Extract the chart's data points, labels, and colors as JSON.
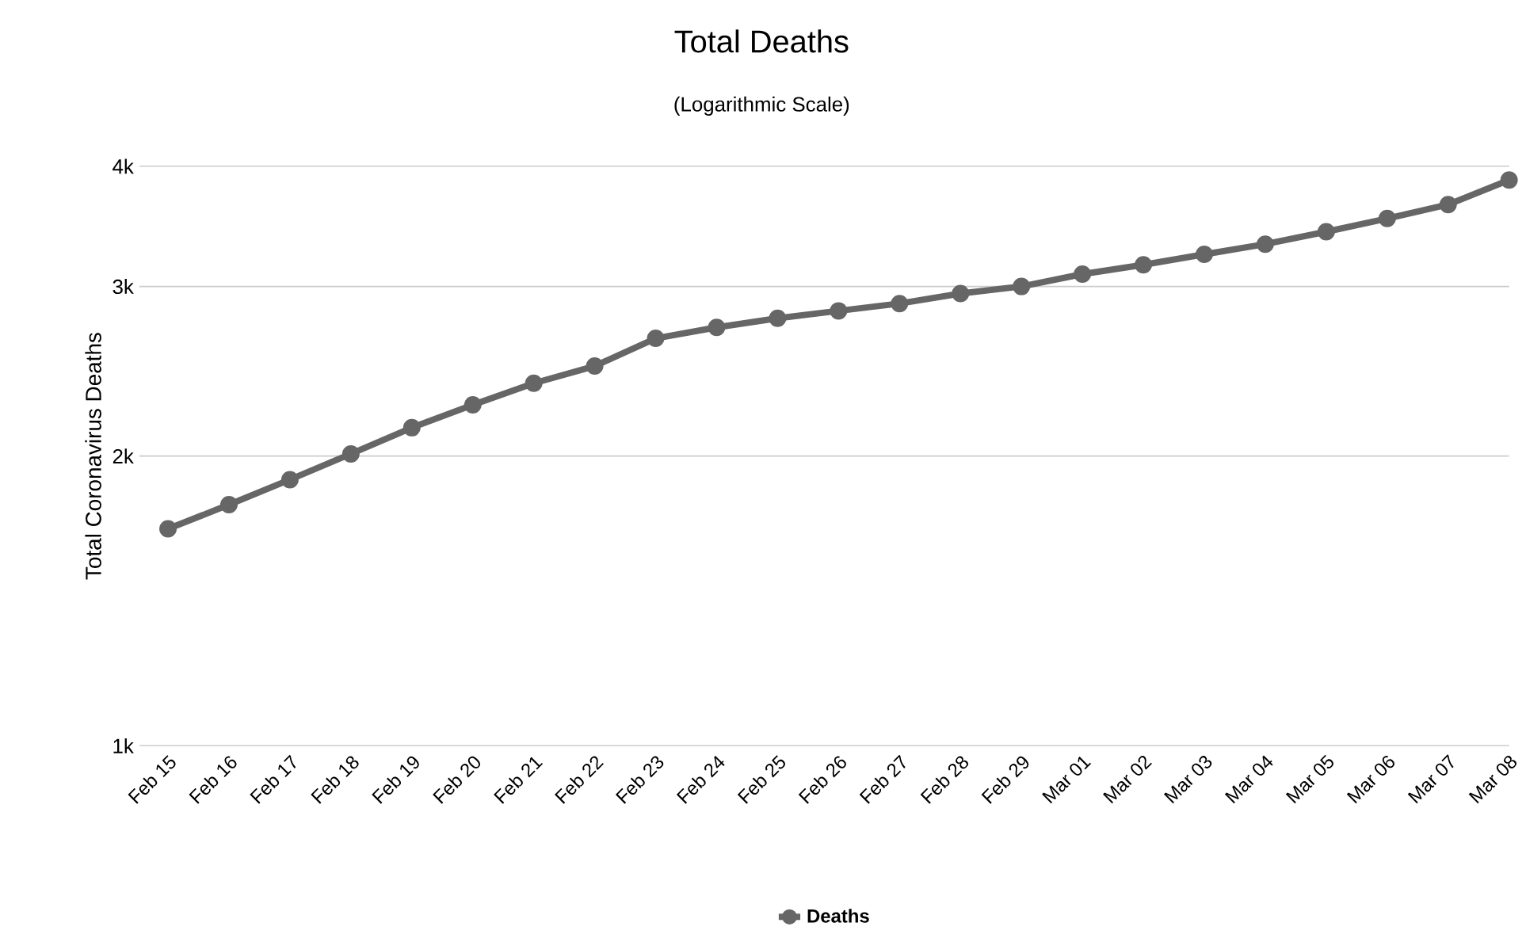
{
  "chart_data": {
    "type": "line",
    "title": "Total Deaths",
    "subtitle": "(Logarithmic Scale)",
    "ylabel": "Total Coronavirus Deaths",
    "categories": [
      "Feb 15",
      "Feb 16",
      "Feb 17",
      "Feb 18",
      "Feb 19",
      "Feb 20",
      "Feb 21",
      "Feb 22",
      "Feb 23",
      "Feb 24",
      "Feb 25",
      "Feb 26",
      "Feb 27",
      "Feb 28",
      "Feb 29",
      "Mar 01",
      "Mar 02",
      "Mar 03",
      "Mar 04",
      "Mar 05",
      "Mar 06",
      "Mar 07",
      "Mar 08"
    ],
    "series": [
      {
        "name": "Deaths",
        "color": "#666666",
        "values": [
          1680,
          1780,
          1890,
          2010,
          2140,
          2260,
          2380,
          2480,
          2650,
          2720,
          2780,
          2830,
          2880,
          2950,
          3000,
          3090,
          3160,
          3240,
          3320,
          3420,
          3530,
          3650,
          3870
        ]
      }
    ],
    "log": "y",
    "ylim": [
      1000,
      4000
    ],
    "yticks": [
      {
        "value": 1000,
        "label": "1k"
      },
      {
        "value": 2000,
        "label": "2k"
      },
      {
        "value": 3000,
        "label": "3k"
      },
      {
        "value": 4000,
        "label": "4k"
      }
    ],
    "grid": "y",
    "legend": "bottom",
    "marker": "circle",
    "line_style": "solid"
  }
}
